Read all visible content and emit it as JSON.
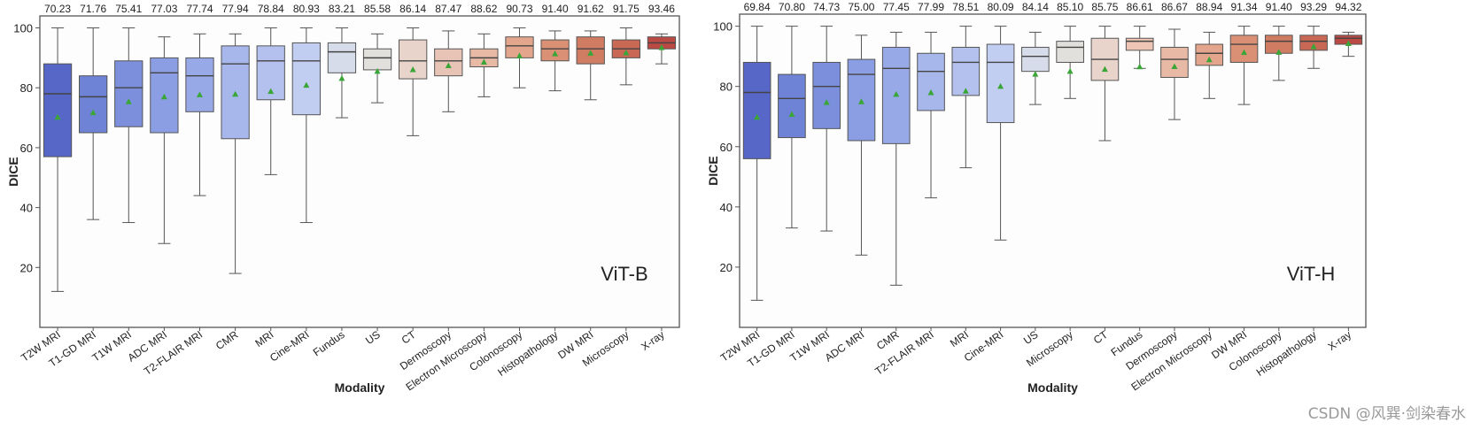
{
  "chart_data": [
    {
      "type": "box",
      "panel_label": "ViT-B",
      "xlabel": "Modality",
      "ylabel": "DICE",
      "ylim": [
        0,
        104
      ],
      "yticks": [
        20,
        40,
        60,
        80,
        100
      ],
      "grid": false,
      "categories": [
        "T2W MRI",
        "T1-GD MRI",
        "T1W MRI",
        "ADC MRI",
        "T2-FLAIR MRI",
        "CMR",
        "MRI",
        "Cine-MRI",
        "Fundus",
        "US",
        "CT",
        "Dermoscopy",
        "Electron Microscopy",
        "Colonoscopy",
        "Histopathology",
        "DW MRI",
        "Microscopy",
        "X-ray"
      ],
      "mean_labels": [
        "70.23",
        "71.76",
        "75.41",
        "77.03",
        "77.74",
        "77.94",
        "78.84",
        "80.93",
        "83.21",
        "85.58",
        "86.14",
        "87.47",
        "88.62",
        "90.73",
        "91.40",
        "91.62",
        "91.75",
        "93.46"
      ],
      "means": [
        70.23,
        71.76,
        75.41,
        77.03,
        77.74,
        77.94,
        78.84,
        80.93,
        83.21,
        85.58,
        86.14,
        87.47,
        88.62,
        90.73,
        91.4,
        91.62,
        91.75,
        93.46
      ],
      "boxes": [
        {
          "whislo": 12,
          "q1": 57,
          "med": 78,
          "q3": 88,
          "whishi": 100
        },
        {
          "whislo": 36,
          "q1": 65,
          "med": 77,
          "q3": 84,
          "whishi": 100
        },
        {
          "whislo": 35,
          "q1": 67,
          "med": 80,
          "q3": 89,
          "whishi": 100
        },
        {
          "whislo": 28,
          "q1": 65,
          "med": 85,
          "q3": 90,
          "whishi": 97
        },
        {
          "whislo": 44,
          "q1": 72,
          "med": 84,
          "q3": 90,
          "whishi": 98
        },
        {
          "whislo": 18,
          "q1": 63,
          "med": 88,
          "q3": 94,
          "whishi": 98
        },
        {
          "whislo": 51,
          "q1": 76,
          "med": 89,
          "q3": 94,
          "whishi": 100
        },
        {
          "whislo": 35,
          "q1": 71,
          "med": 89,
          "q3": 95,
          "whishi": 100
        },
        {
          "whislo": 70,
          "q1": 85,
          "med": 92,
          "q3": 95,
          "whishi": 100
        },
        {
          "whislo": 75,
          "q1": 86,
          "med": 90,
          "q3": 93,
          "whishi": 98
        },
        {
          "whislo": 64,
          "q1": 83,
          "med": 89,
          "q3": 96,
          "whishi": 100
        },
        {
          "whislo": 72,
          "q1": 84,
          "med": 89,
          "q3": 93,
          "whishi": 99
        },
        {
          "whislo": 77,
          "q1": 87,
          "med": 90,
          "q3": 93,
          "whishi": 98
        },
        {
          "whislo": 80,
          "q1": 90,
          "med": 94,
          "q3": 97,
          "whishi": 100
        },
        {
          "whislo": 79,
          "q1": 89,
          "med": 93,
          "q3": 96,
          "whishi": 99
        },
        {
          "whislo": 76,
          "q1": 88,
          "med": 93,
          "q3": 97,
          "whishi": 99
        },
        {
          "whislo": 81,
          "q1": 90,
          "med": 93,
          "q3": 96,
          "whishi": 100
        },
        {
          "whislo": 88,
          "q1": 93,
          "med": 95,
          "q3": 97,
          "whishi": 98
        }
      ],
      "colors": [
        "#5767c7",
        "#6e82d6",
        "#7b8fdd",
        "#8b9ee4",
        "#98a9e8",
        "#a7b6eb",
        "#b4c1ef",
        "#c2cdf2",
        "#d6dce9",
        "#e2e0dd",
        "#e9d4cc",
        "#e7c4b6",
        "#e8b9a5",
        "#e3a68c",
        "#da9075",
        "#d07c63",
        "#c86855",
        "#bb4a45"
      ]
    },
    {
      "type": "box",
      "panel_label": "ViT-H",
      "xlabel": "Modality",
      "ylabel": "DICE",
      "ylim": [
        0,
        104
      ],
      "yticks": [
        20,
        40,
        60,
        80,
        100
      ],
      "grid": false,
      "categories": [
        "T2W MRI",
        "T1-GD MRI",
        "T1W MRI",
        "ADC MRI",
        "CMR",
        "T2-FLAIR MRI",
        "MRI",
        "Cine-MRI",
        "US",
        "Microscopy",
        "CT",
        "Fundus",
        "Dermoscopy",
        "Electron Microscopy",
        "DW MRI",
        "Colonoscopy",
        "Histopathology",
        "X-ray"
      ],
      "mean_labels": [
        "69.84",
        "70.80",
        "74.73",
        "75.00",
        "77.45",
        "77.99",
        "78.51",
        "80.09",
        "84.14",
        "85.10",
        "85.75",
        "86.61",
        "86.67",
        "88.94",
        "91.34",
        "91.40",
        "93.29",
        "94.32"
      ],
      "means": [
        69.84,
        70.8,
        74.73,
        75.0,
        77.45,
        77.99,
        78.51,
        80.09,
        84.14,
        85.1,
        85.75,
        86.61,
        86.67,
        88.94,
        91.34,
        91.4,
        93.29,
        94.32
      ],
      "boxes": [
        {
          "whislo": 9,
          "q1": 56,
          "med": 78,
          "q3": 88,
          "whishi": 100
        },
        {
          "whislo": 33,
          "q1": 63,
          "med": 76,
          "q3": 84,
          "whishi": 100
        },
        {
          "whislo": 32,
          "q1": 66,
          "med": 80,
          "q3": 88,
          "whishi": 100
        },
        {
          "whislo": 24,
          "q1": 62,
          "med": 84,
          "q3": 89,
          "whishi": 97
        },
        {
          "whislo": 14,
          "q1": 61,
          "med": 86,
          "q3": 93,
          "whishi": 98
        },
        {
          "whislo": 43,
          "q1": 72,
          "med": 85,
          "q3": 91,
          "whishi": 98
        },
        {
          "whislo": 53,
          "q1": 77,
          "med": 88,
          "q3": 93,
          "whishi": 100
        },
        {
          "whislo": 29,
          "q1": 68,
          "med": 88,
          "q3": 94,
          "whishi": 100
        },
        {
          "whislo": 74,
          "q1": 85,
          "med": 90,
          "q3": 93,
          "whishi": 98
        },
        {
          "whislo": 76,
          "q1": 88,
          "med": 93,
          "q3": 95,
          "whishi": 100
        },
        {
          "whislo": 62,
          "q1": 82,
          "med": 89,
          "q3": 96,
          "whishi": 100
        },
        {
          "whislo": 86,
          "q1": 92,
          "med": 95,
          "q3": 96,
          "whishi": 100
        },
        {
          "whislo": 69,
          "q1": 83,
          "med": 89,
          "q3": 93,
          "whishi": 99
        },
        {
          "whislo": 76,
          "q1": 87,
          "med": 91,
          "q3": 94,
          "whishi": 98
        },
        {
          "whislo": 74,
          "q1": 88,
          "med": 94,
          "q3": 97,
          "whishi": 100
        },
        {
          "whislo": 82,
          "q1": 91,
          "med": 95,
          "q3": 97,
          "whishi": 100
        },
        {
          "whislo": 86,
          "q1": 92,
          "med": 95,
          "q3": 97,
          "whishi": 100
        },
        {
          "whislo": 90,
          "q1": 94,
          "med": 96,
          "q3": 97,
          "whishi": 98
        }
      ],
      "colors": [
        "#5767c7",
        "#6e82d6",
        "#7b8fdd",
        "#8b9ee4",
        "#98a9e8",
        "#a7b6eb",
        "#b4c1ef",
        "#c2cdf2",
        "#d6dce9",
        "#e2e0dd",
        "#e9d4cc",
        "#efc6b6",
        "#e8b9a5",
        "#e3a68c",
        "#da9075",
        "#d07c63",
        "#c86855",
        "#bb4a45"
      ]
    }
  ],
  "watermark": "CSDN @风巽·剑染春水",
  "style": {
    "mean_marker_color": "#3aa637",
    "axis_color": "#555555"
  }
}
